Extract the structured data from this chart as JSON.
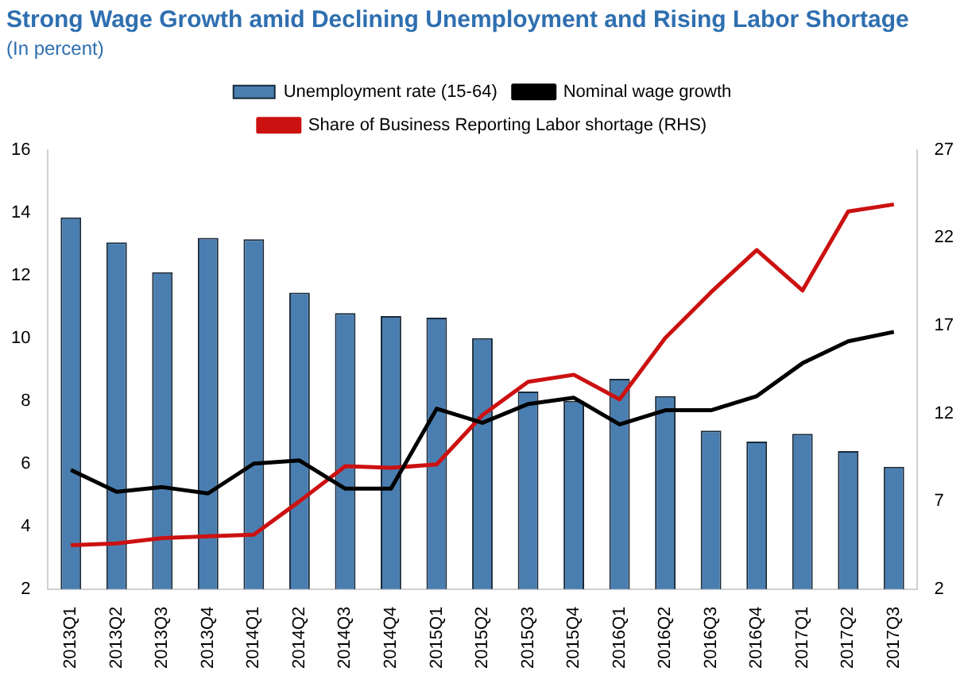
{
  "chart_data": {
    "type": "bar",
    "title": "Strong Wage Growth amid Declining Unemployment and Rising Labor Shortage",
    "subtitle": "(In percent)",
    "categories": [
      "2013Q1",
      "2013Q2",
      "2013Q3",
      "2013Q4",
      "2014Q1",
      "2014Q2",
      "2014Q3",
      "2014Q4",
      "2015Q1",
      "2015Q2",
      "2015Q3",
      "2015Q4",
      "2016Q1",
      "2016Q2",
      "2016Q3",
      "2016Q4",
      "2017Q1",
      "2017Q2",
      "2017Q3"
    ],
    "series": [
      {
        "name": "Unemployment rate (15-64)",
        "color": "#4a7eb0",
        "values": [
          13.85,
          13.05,
          12.1,
          13.2,
          13.15,
          11.45,
          10.8,
          10.7,
          10.65,
          10.0,
          8.3,
          8.0,
          8.7,
          8.15,
          7.05,
          6.7,
          6.95,
          6.4,
          5.9
        ]
      },
      {
        "name": "Nominal wage growth",
        "type": "line",
        "color": "#000000",
        "values": [
          5.8,
          5.1,
          5.25,
          5.05,
          6.0,
          6.1,
          5.2,
          5.2,
          7.75,
          7.3,
          7.9,
          8.1,
          7.25,
          7.7,
          7.7,
          8.15,
          9.2,
          9.9,
          10.2
        ]
      },
      {
        "name": "Share of Business Reporting Labor shortage (RHS)",
        "type": "line",
        "axis": "y2",
        "color": "#cc1111",
        "values": [
          4.5,
          4.6,
          4.9,
          5.0,
          5.1,
          7.0,
          9.0,
          8.9,
          9.1,
          11.9,
          13.8,
          14.2,
          12.8,
          16.3,
          18.9,
          21.3,
          19.0,
          23.5,
          23.9
        ]
      }
    ],
    "ylim": [
      2,
      16
    ],
    "yticks": [
      2,
      4,
      6,
      8,
      10,
      12,
      14,
      16
    ],
    "y2lim": [
      2,
      27
    ],
    "y2ticks": [
      2,
      7,
      12,
      17,
      22,
      27
    ],
    "legend": "top",
    "grid": false,
    "marker": "none",
    "line_style": "solid"
  }
}
